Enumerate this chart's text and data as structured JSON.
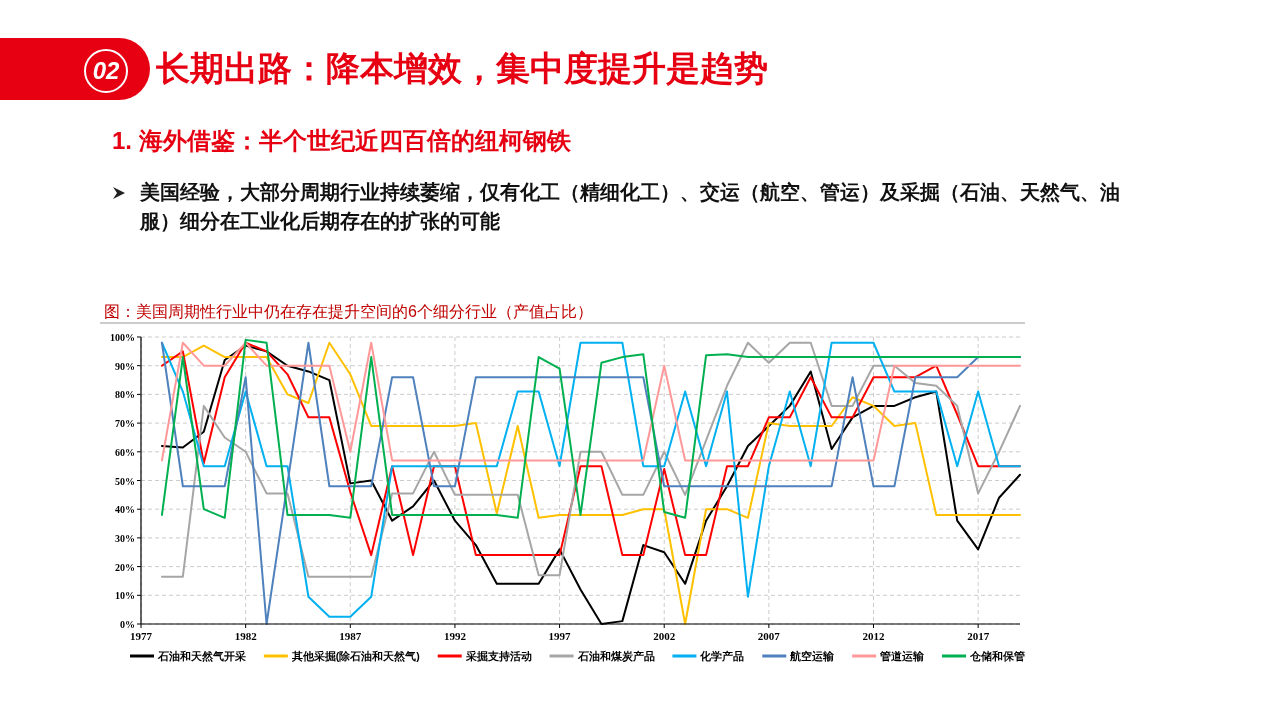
{
  "chart_data": {
    "type": "line",
    "title": "长期出路：降本增效，集中度提升是趋势",
    "subtitle": "1. 海外借鉴：半个世纪近四百倍的纽柯钢铁",
    "annotations": [
      "02",
      "美国经验，大部分周期行业持续萎缩，仅有化工（精细化工）、交运（航空、管运）及采掘（石油、天然气、油服）细分在工业化后期存在的扩张的可能",
      "图：美国周期性行业中仍在存在提升空间的6个细分行业（产值占比）"
    ],
    "x": [
      1978,
      1979,
      1980,
      1981,
      1982,
      1983,
      1984,
      1985,
      1986,
      1987,
      1988,
      1989,
      1990,
      1991,
      1992,
      1993,
      1994,
      1995,
      1996,
      1997,
      1998,
      1999,
      2000,
      2001,
      2002,
      2003,
      2004,
      2005,
      2006,
      2007,
      2008,
      2009,
      2010,
      2011,
      2012,
      2013,
      2014,
      2015,
      2016,
      2017,
      2018,
      2019
    ],
    "xlim": [
      1977,
      2019
    ],
    "xticks": [
      1977,
      1982,
      1987,
      1992,
      1997,
      2002,
      2007,
      2012,
      2017
    ],
    "ylim": [
      0,
      100
    ],
    "yticks": [
      {
        "value": 0,
        "label": "0%"
      },
      {
        "value": 10,
        "label": "10%"
      },
      {
        "value": 20,
        "label": "20%"
      },
      {
        "value": 30,
        "label": "30%"
      },
      {
        "value": 40,
        "label": "40%"
      },
      {
        "value": 50,
        "label": "50%"
      },
      {
        "value": 60,
        "label": "60%"
      },
      {
        "value": 70,
        "label": "70%"
      },
      {
        "value": 80,
        "label": "80%"
      },
      {
        "value": 90,
        "label": "90%"
      },
      {
        "value": 100,
        "label": "100%"
      }
    ],
    "grid": true,
    "legend": "bottom",
    "line_style": "solid",
    "series": [
      {
        "name": "石油和天然气开采",
        "color": "#000000",
        "values": [
          62,
          61.5,
          67,
          92,
          97,
          95,
          90,
          88,
          85,
          49,
          50,
          36,
          41,
          50,
          36,
          27.5,
          14,
          14,
          14,
          26,
          12,
          0,
          1,
          27.5,
          25,
          14,
          36,
          48,
          62,
          69,
          76,
          88,
          61,
          72,
          76,
          76,
          79,
          81,
          36,
          26,
          44,
          52
        ]
      },
      {
        "name": "其他采掘(除石油和天然气)",
        "color": "#ffc000",
        "values": [
          93,
          93,
          97,
          93,
          93,
          93,
          80,
          77,
          98,
          87,
          69,
          69,
          69,
          69,
          69,
          70,
          38.5,
          69,
          37,
          38,
          38,
          38,
          38,
          40,
          40,
          0,
          40,
          40,
          37,
          70,
          69,
          69,
          69,
          79,
          76,
          69,
          70,
          38,
          38,
          38,
          38,
          38
        ]
      },
      {
        "name": "采掘支持活动",
        "color": "#ff0000",
        "values": [
          90,
          95,
          56,
          86,
          98,
          95,
          87,
          72,
          72,
          46,
          24,
          55,
          24,
          55,
          55,
          24,
          24,
          24,
          24,
          24,
          55,
          55,
          24,
          24,
          54,
          24,
          24,
          55,
          55,
          72,
          72,
          86,
          72,
          72,
          86,
          86,
          86,
          90,
          73,
          55,
          55,
          55
        ]
      },
      {
        "name": "石油和煤炭产品",
        "color": "#a6a6a6",
        "values": [
          16.5,
          16.5,
          76,
          65,
          60,
          45.5,
          45.5,
          16.5,
          16.5,
          16.5,
          16.5,
          45.5,
          45.5,
          60,
          45,
          45,
          45,
          45,
          17,
          17,
          60,
          60,
          45,
          45,
          60,
          45,
          64,
          83,
          98,
          91,
          98,
          98,
          76,
          76,
          90,
          90,
          84,
          83,
          76,
          45.5,
          60,
          76
        ]
      },
      {
        "name": "化学产品",
        "color": "#00b0f0",
        "values": [
          98,
          81,
          55,
          55,
          81,
          55,
          55,
          9.5,
          2.5,
          2.5,
          9.5,
          55,
          55,
          55,
          55,
          55,
          55,
          81,
          81,
          55,
          98,
          98,
          98,
          55,
          55,
          81,
          55,
          81,
          9.5,
          55,
          81,
          55,
          98,
          98,
          98,
          81,
          81,
          81,
          55,
          81,
          55,
          55
        ]
      },
      {
        "name": "航空运输",
        "color": "#4f81bd",
        "values": [
          98,
          48,
          48,
          48,
          86,
          0,
          49,
          98,
          48,
          48,
          48,
          86,
          86,
          48,
          48,
          86,
          86,
          86,
          86,
          86,
          86,
          86,
          86,
          86,
          48,
          48,
          48,
          48,
          48,
          48,
          48,
          48,
          48,
          86,
          48,
          48,
          86,
          86,
          86,
          93,
          93,
          93
        ]
      },
      {
        "name": "管道运输",
        "color": "#ff9999",
        "values": [
          57,
          98,
          90,
          90,
          98,
          90,
          90,
          90,
          90,
          60,
          98,
          57,
          57,
          57,
          57,
          57,
          57,
          57,
          57,
          57,
          57,
          57,
          57,
          57,
          90,
          57,
          57,
          57,
          57,
          57,
          57,
          57,
          57,
          57,
          57,
          90,
          90,
          90,
          90,
          90,
          90,
          90
        ]
      },
      {
        "name": "仓储和保管",
        "color": "#00b050",
        "values": [
          38,
          93,
          40,
          37,
          99,
          98,
          38,
          38,
          38,
          37,
          93,
          38,
          38,
          38,
          38,
          38,
          38,
          37,
          93,
          89,
          38,
          91,
          93,
          94,
          39,
          37,
          93.6,
          94,
          93,
          93,
          93,
          93,
          93,
          93,
          93,
          93,
          93,
          93,
          93,
          93,
          93,
          93
        ]
      }
    ]
  }
}
